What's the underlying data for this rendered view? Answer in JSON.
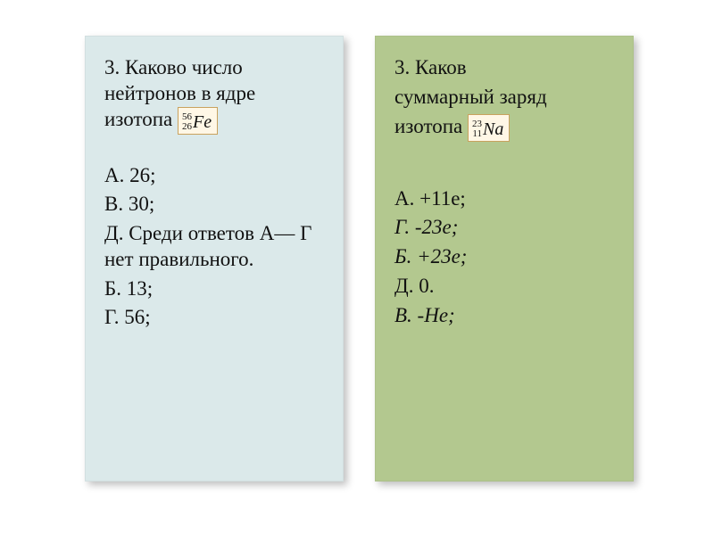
{
  "left": {
    "question_prefix": "3. Каково число нейтронов в ядре изотопа",
    "isotope": {
      "mass": "56",
      "atomic": "26",
      "symbol": "Fe"
    },
    "options": [
      {
        "text": "А. 26;",
        "italic": false
      },
      {
        "text": "В. 30;",
        "italic": false
      },
      {
        "text": "Д. Среди ответов А— Г нет правильного.",
        "italic": false
      },
      {
        "text": "Б. 13;",
        "italic": false
      },
      {
        "text": "Г. 56;",
        "italic": false
      }
    ],
    "bg_color": "#dbe9ea"
  },
  "right": {
    "question_line1": "3. Каков",
    "question_line2": "суммарный заряд",
    "question_line3_prefix": "изотопа",
    "isotope": {
      "mass": "23",
      "atomic": "11",
      "symbol": "Na"
    },
    "options": [
      {
        "text": "А. +11е;",
        "italic": false
      },
      {
        "text": "Г. -23е;",
        "italic": true
      },
      {
        "text": "Б. +23е;",
        "italic": true
      },
      {
        "text": "Д. 0.",
        "italic": false
      },
      {
        "text": "В. -Не;",
        "italic": true
      }
    ],
    "bg_color": "#b3c88f"
  },
  "style": {
    "font_size_pt": 23,
    "text_color": "#111111",
    "isotope_border": "#c9a25e",
    "isotope_bg": "#fff7e6"
  }
}
